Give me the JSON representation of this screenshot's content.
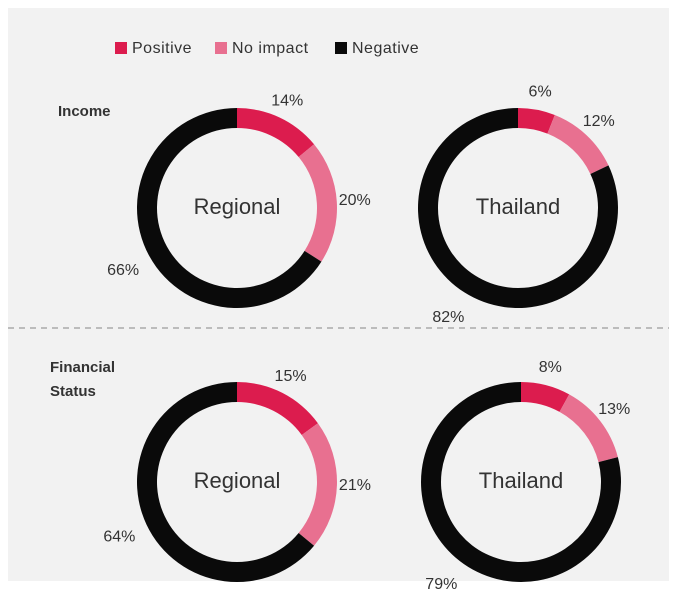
{
  "legend": {
    "items": [
      {
        "name": "Positive",
        "color": "#dc1c4e"
      },
      {
        "name": "No impact",
        "color": "#e87090"
      },
      {
        "name": "Negative",
        "color": "#0a0a0a"
      }
    ]
  },
  "row_labels": [
    "Income",
    "Financial Status"
  ],
  "chart_data": [
    {
      "type": "donut",
      "title": "Regional",
      "values": [
        14,
        20,
        66
      ],
      "value_labels": [
        "14%",
        "20%",
        "66%"
      ]
    },
    {
      "type": "donut",
      "title": "Thailand",
      "values": [
        6,
        12,
        82
      ],
      "value_labels": [
        "6%",
        "12%",
        "82%"
      ]
    },
    {
      "type": "donut",
      "title": "Regional",
      "values": [
        15,
        21,
        64
      ],
      "value_labels": [
        "15%",
        "21%",
        "64%"
      ]
    },
    {
      "type": "donut",
      "title": "Thailand",
      "values": [
        8,
        13,
        79
      ],
      "value_labels": [
        "8%",
        "13%",
        "79%"
      ]
    }
  ]
}
